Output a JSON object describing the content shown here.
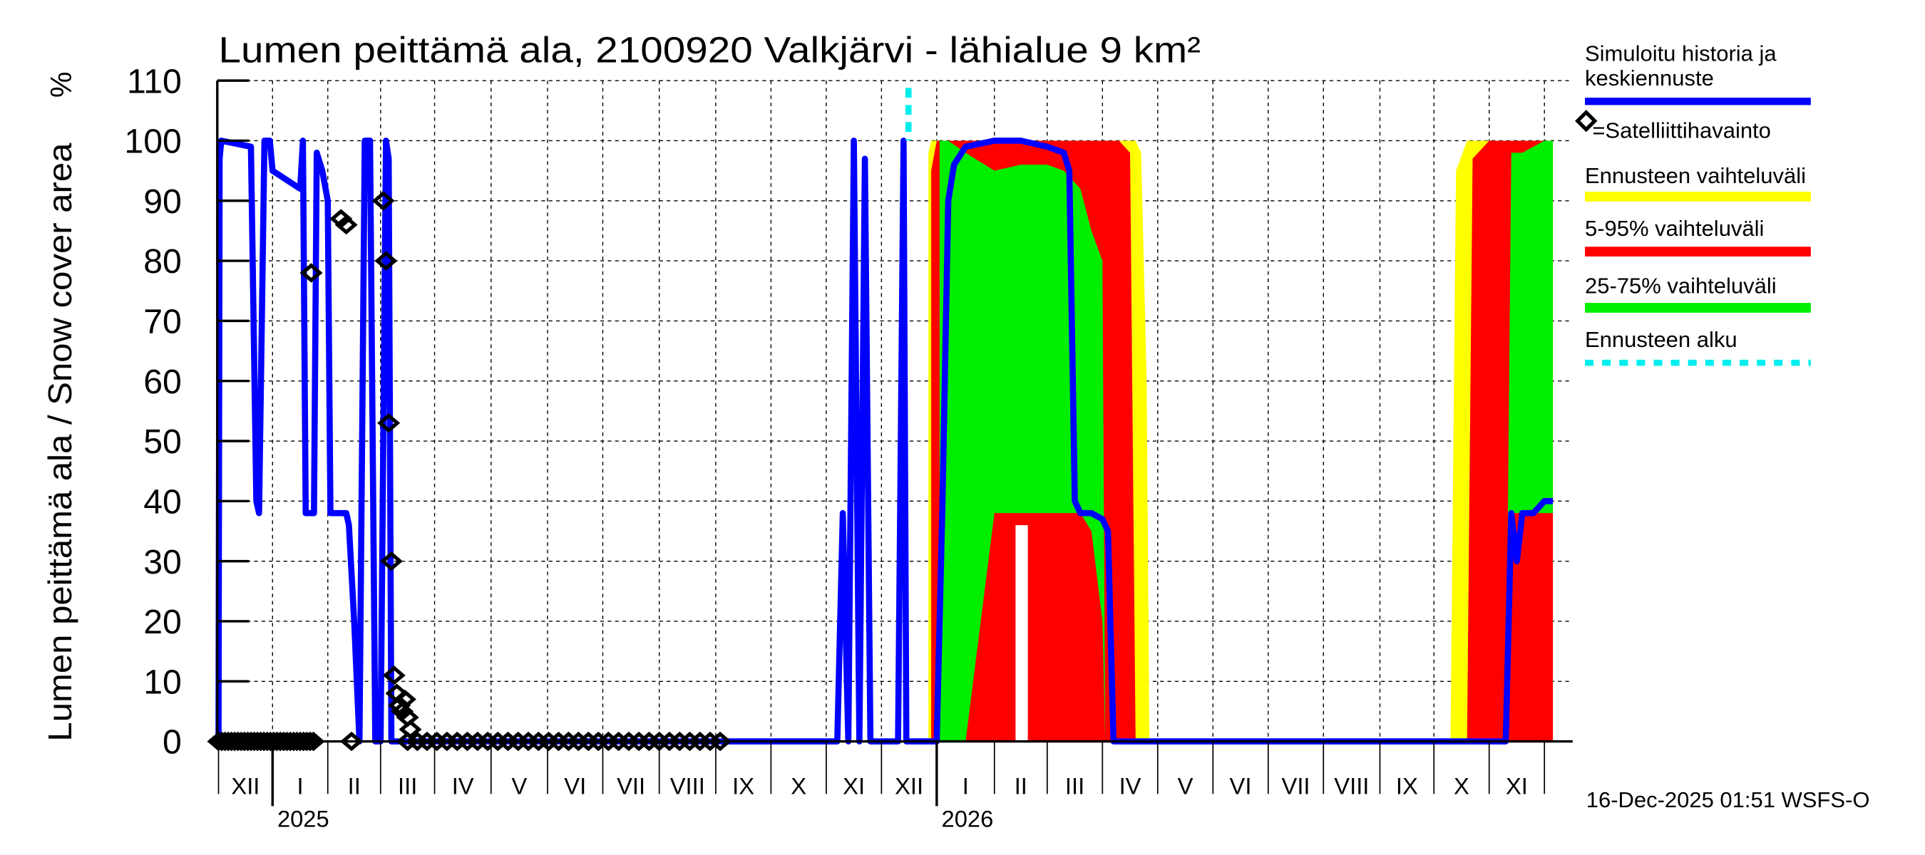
{
  "chart_data": {
    "type": "area",
    "title": "Lumen peittämä ala, 2100920 Valkjärvi - lähialue 9 km²",
    "ylabel": "Lumen peittämä ala / Snow cover area",
    "yunit": "%",
    "xlabel": "",
    "ylim": [
      0,
      110
    ],
    "yticks": [
      0,
      10,
      20,
      30,
      40,
      50,
      60,
      70,
      80,
      90,
      100,
      110
    ],
    "grid": true,
    "legend_position": "right",
    "x_months": [
      "XII",
      "I",
      "II",
      "III",
      "IV",
      "V",
      "VI",
      "VII",
      "VIII",
      "IX",
      "X",
      "XI",
      "XII",
      "I",
      "II",
      "III",
      "IV",
      "V",
      "VI",
      "VII",
      "VIII",
      "IX",
      "X",
      "XI"
    ],
    "x_years": [
      {
        "label": "2025",
        "month_index": 1
      },
      {
        "label": "2026",
        "month_index": 13
      }
    ],
    "forecast_start": "2025-12-16",
    "legend": [
      {
        "label": "Simuloitu historia ja keskiennuste",
        "color": "#0000ff",
        "style": "line"
      },
      {
        "label": "=Satelliittihavainto",
        "color": "#000000",
        "style": "diamond"
      },
      {
        "label": "Ennusteen vaihteluväli",
        "color": "#ffff00",
        "style": "band"
      },
      {
        "label": "5-95% vaihteluväli",
        "color": "#ff0000",
        "style": "band"
      },
      {
        "label": "25-75% vaihteluväli",
        "color": "#00ee00",
        "style": "band"
      },
      {
        "label": "Ennusteen alku",
        "color": "#00eeee",
        "style": "dashed"
      }
    ],
    "series": [
      {
        "name": "Simuloitu historia ja keskiennuste",
        "color": "#0000ff",
        "x_month_pos": [
          0.0,
          0.02,
          0.05,
          0.6,
          0.7,
          0.75,
          0.85,
          0.9,
          0.95,
          1.0,
          1.5,
          1.55,
          1.6,
          1.7,
          1.75,
          1.8,
          1.9,
          2.0,
          2.05,
          2.1,
          2.2,
          2.3,
          2.35,
          2.4,
          2.5,
          2.6,
          2.7,
          2.8,
          2.9,
          3.0,
          3.1,
          3.15,
          3.2,
          3.3,
          3.4,
          3.45,
          3.5,
          3.6,
          3.65,
          3.7,
          3.8,
          4.5,
          5.0,
          6.0,
          7.0,
          8.0,
          9.0,
          10.0,
          11.2,
          11.3,
          11.4,
          11.5,
          11.6,
          11.7,
          11.8,
          11.9,
          12.3,
          12.4,
          12.45,
          12.5,
          12.6,
          13.0,
          13.1,
          13.2,
          13.3,
          13.5,
          14.0,
          14.5,
          15.0,
          15.3,
          15.4,
          15.5,
          15.6,
          15.8,
          16.0,
          16.1,
          16.2,
          17.0,
          18.0,
          19.0,
          20.0,
          21.0,
          22.0,
          22.8,
          23.2,
          23.3,
          23.4,
          23.5,
          23.6,
          23.8,
          24.0,
          24.3
        ],
        "values": [
          0,
          97,
          100,
          99,
          40,
          38,
          100,
          100,
          100,
          95,
          92,
          100,
          38,
          38,
          38,
          98,
          95,
          90,
          38,
          38,
          38,
          38,
          38,
          36,
          20,
          0,
          100,
          100,
          0,
          0,
          100,
          97,
          0,
          0,
          0,
          0,
          0,
          0,
          0,
          0,
          0,
          0,
          0,
          0,
          0,
          0,
          0,
          0,
          0,
          38,
          0,
          100,
          0,
          97,
          0,
          0,
          0,
          100,
          0,
          0,
          0,
          0,
          40,
          90,
          96,
          99,
          100,
          100,
          99,
          98,
          95,
          40,
          38,
          38,
          37,
          35,
          0,
          0,
          0,
          0,
          0,
          0,
          0,
          0,
          0,
          0,
          38,
          30,
          38,
          38,
          40,
          40,
          95
        ]
      },
      {
        "name": "Ennusteen vaihteluväli",
        "color": "#ffff00",
        "band": "min-max"
      },
      {
        "name": "5-95% vaihteluväli",
        "color": "#ff0000",
        "band": "5-95"
      },
      {
        "name": "25-75% vaihteluväli",
        "color": "#00ee00",
        "band": "25-75"
      }
    ],
    "bands": {
      "season1": {
        "x_start_month": 12.85,
        "x_end_month": 16.85,
        "yellow": {
          "x": [
            12.85,
            12.9,
            13.0,
            15.8,
            16.2,
            16.4,
            16.6,
            16.7,
            16.8,
            16.85
          ],
          "top": [
            98,
            100,
            100,
            100,
            100,
            100,
            100,
            98,
            60,
            0
          ],
          "bottom": [
            0,
            0,
            0,
            0,
            0,
            0,
            0,
            0,
            0,
            0
          ]
        },
        "red": {
          "x": [
            12.9,
            13.0,
            13.2,
            15.8,
            16.0,
            16.3,
            16.5,
            16.6
          ],
          "top": [
            95,
            100,
            100,
            100,
            100,
            100,
            98,
            0
          ],
          "bottom": [
            0,
            0,
            0,
            0,
            0,
            0,
            0,
            0
          ]
        },
        "green": {
          "x": [
            13.05,
            13.2,
            13.5,
            14.0,
            14.5,
            15.0,
            15.3,
            15.6,
            15.8,
            16.0,
            16.05
          ],
          "top": [
            100,
            100,
            98,
            95,
            96,
            96,
            95,
            92,
            85,
            80,
            0
          ],
          "bottom": [
            0,
            0,
            0,
            38,
            38,
            38,
            38,
            38,
            35,
            20,
            0
          ]
        }
      },
      "season2": {
        "yellow": {
          "x": [
            22.3,
            22.4,
            22.6,
            23.0,
            24.3
          ],
          "top": [
            0,
            95,
            100,
            100,
            100
          ],
          "bottom": [
            0,
            0,
            0,
            0,
            0
          ]
        },
        "red": {
          "x": [
            22.6,
            22.7,
            23.0,
            24.3
          ],
          "top": [
            0,
            97,
            100,
            100
          ],
          "bottom": [
            0,
            0,
            0,
            0
          ]
        },
        "green": {
          "x": [
            23.3,
            23.4,
            23.6,
            24.0,
            24.3
          ],
          "top": [
            0,
            98,
            98,
            100,
            100
          ],
          "bottom": [
            0,
            38,
            38,
            38,
            38
          ]
        }
      }
    },
    "satellite_observations": {
      "x_month_pos": [
        1.7,
        2.25,
        2.35,
        3.05,
        3.1,
        3.15,
        3.2,
        3.25,
        3.3,
        3.35,
        3.4,
        3.45,
        3.5,
        3.55,
        2.45
      ],
      "values": [
        78,
        87,
        86,
        90,
        80,
        53,
        30,
        11,
        8,
        6,
        5,
        7,
        4,
        2,
        0
      ],
      "zero_observations_note": "many zero-valued observations Dec 2024 – Sep 2025"
    }
  },
  "footer": {
    "timestamp": "16-Dec-2025 01:51 WSFS-O"
  }
}
